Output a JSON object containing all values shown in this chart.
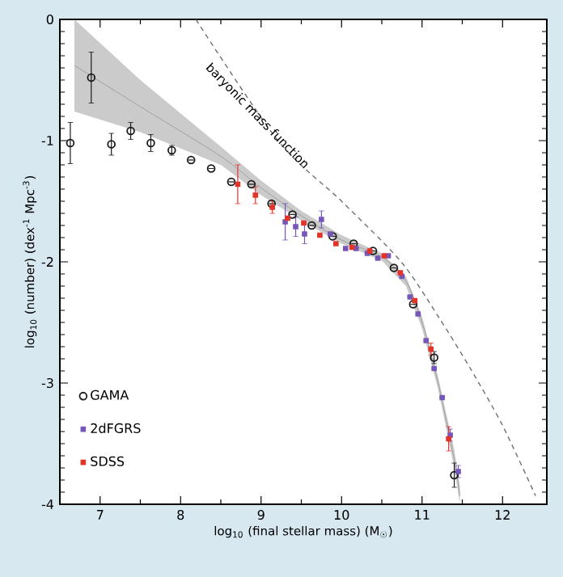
{
  "chart_data": {
    "type": "scatter",
    "xlabel": "log$_{10}$ (final stellar mass) (M$_{☉}$)",
    "ylabel": "log$_{10}$ (number) (dex$^{-1}$ Mpc$^{-3}$)",
    "xlim": [
      6.5,
      12.55
    ],
    "xticks": [
      7,
      8,
      9,
      10,
      11,
      12
    ],
    "ylim": [
      -4,
      0
    ],
    "yticks": [
      -4,
      -3,
      -2,
      -1,
      0
    ],
    "grid": false,
    "legend": "bottom left",
    "series": [
      {
        "type": "line",
        "color": "#a0a0a0",
        "x": [
          6.68,
          7.5,
          8.5,
          9.0,
          9.5,
          10.0,
          10.5,
          10.8,
          11.0,
          11.2,
          11.4,
          11.47
        ],
        "values": [
          -0.38,
          -0.72,
          -1.13,
          -1.39,
          -1.62,
          -1.82,
          -1.96,
          -2.16,
          -2.5,
          -3.0,
          -3.63,
          -3.93
        ],
        "lower": [
          -0.76,
          -0.93,
          -1.2,
          -1.45,
          -1.66,
          -1.85,
          -1.99,
          -2.2,
          -2.55,
          -3.05,
          -3.7,
          -4.0
        ],
        "upper": [
          0,
          -0.5,
          -1.05,
          -1.33,
          -1.58,
          -1.78,
          -1.93,
          -2.12,
          -2.45,
          -2.95,
          -3.55,
          -3.85
        ]
      },
      {
        "type": "line",
        "name": "baryonic mass function",
        "color": "#707070",
        "line_style": "dashed",
        "marker": "none",
        "x": [
          8.19,
          9.21,
          10.0,
          10.74,
          11.2,
          11.6,
          12.0,
          12.41
        ],
        "values": [
          0,
          -1,
          -1.5,
          -2,
          -2.45,
          -2.88,
          -3.35,
          -3.93
        ]
      },
      {
        "name": "GAMA",
        "color": "#1a1a1a",
        "marker": "circle",
        "x": [
          6.63,
          6.89,
          7.14,
          7.38,
          7.63,
          7.89,
          8.13,
          8.38,
          8.63,
          8.88,
          9.13,
          9.39,
          9.63,
          9.89,
          10.15,
          10.39,
          10.65,
          10.89,
          11.15,
          11.4
        ],
        "values": [
          -1.02,
          -0.48,
          -1.03,
          -0.92,
          -1.02,
          -1.08,
          -1.16,
          -1.23,
          -1.34,
          -1.36,
          -1.52,
          -1.61,
          -1.7,
          -1.79,
          -1.85,
          -1.91,
          -2.05,
          -2.35,
          -2.79,
          -3.76
        ],
        "errors": [
          0.17,
          0.21,
          0.09,
          0.07,
          0.07,
          0.04,
          null,
          null,
          null,
          null,
          null,
          null,
          null,
          null,
          null,
          null,
          null,
          null,
          0.05,
          0.1
        ]
      },
      {
        "name": "2dFGRS",
        "color": "#7657b8",
        "marker": "square",
        "x": [
          9.3,
          9.43,
          9.54,
          9.75,
          9.86,
          10.05,
          10.18,
          10.32,
          10.45,
          10.58,
          10.75,
          10.85,
          10.95,
          11.05,
          11.15,
          11.25,
          11.35,
          11.45
        ],
        "values": [
          -1.67,
          -1.71,
          -1.77,
          -1.65,
          -1.77,
          -1.89,
          -1.89,
          -1.93,
          -1.97,
          -1.95,
          -2.12,
          -2.29,
          -2.43,
          -2.65,
          -2.88,
          -3.12,
          -3.43,
          -3.73
        ],
        "errors": [
          0.15,
          0.08,
          0.08,
          0.07,
          null,
          null,
          null,
          null,
          null,
          null,
          null,
          null,
          null,
          null,
          null,
          null,
          0.05,
          0.05
        ]
      },
      {
        "name": "SDSS",
        "color": "#e3342a",
        "marker": "square",
        "x": [
          8.71,
          8.93,
          9.14,
          9.33,
          9.53,
          9.73,
          9.93,
          10.13,
          10.35,
          10.53,
          10.73,
          10.91,
          11.11,
          11.33
        ],
        "values": [
          -1.36,
          -1.45,
          -1.55,
          -1.64,
          -1.68,
          -1.78,
          -1.85,
          -1.88,
          -1.91,
          -1.95,
          -2.09,
          -2.32,
          -2.72,
          -3.46
        ],
        "errors": [
          0.16,
          0.07,
          0.05,
          null,
          null,
          null,
          null,
          null,
          null,
          null,
          null,
          null,
          0.05,
          0.1
        ]
      }
    ]
  }
}
